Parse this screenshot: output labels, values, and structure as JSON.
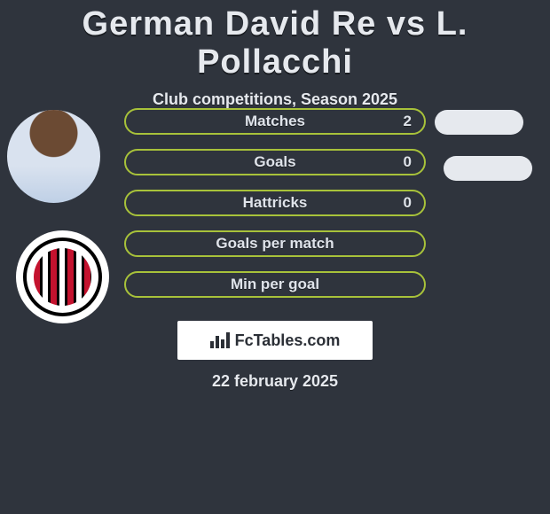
{
  "background_color": "#2f343d",
  "text_color": "#e6e9ee",
  "text_shadow_color": "#1a1d22",
  "title": "German David Re vs L. Pollacchi",
  "title_fontsize": 38,
  "subtitle": "Club competitions, Season 2025",
  "subtitle_fontsize": 18,
  "avatars": {
    "player": {
      "kind": "photo-placeholder",
      "position": "top"
    },
    "club": {
      "kind": "crest",
      "position": "bottom",
      "stripe_colors": [
        "#c4122e",
        "#000000",
        "#ffffff"
      ]
    }
  },
  "bar_style": {
    "border_color": "#a8c23a",
    "border_width": 2,
    "border_radius": 16,
    "height": 30,
    "gap": 16,
    "label_fontsize": 17
  },
  "stats": [
    {
      "label": "Matches",
      "value": "2"
    },
    {
      "label": "Goals",
      "value": "0"
    },
    {
      "label": "Hattricks",
      "value": "0"
    },
    {
      "label": "Goals per match",
      "value": ""
    },
    {
      "label": "Min per goal",
      "value": ""
    }
  ],
  "side_pills": {
    "color": "#e6e9ee",
    "count": 2
  },
  "attribution": {
    "text": "FcTables.com",
    "box_background": "#ffffff",
    "box_text_color": "#2b2f36"
  },
  "date": "22 february 2025",
  "date_fontsize": 18
}
